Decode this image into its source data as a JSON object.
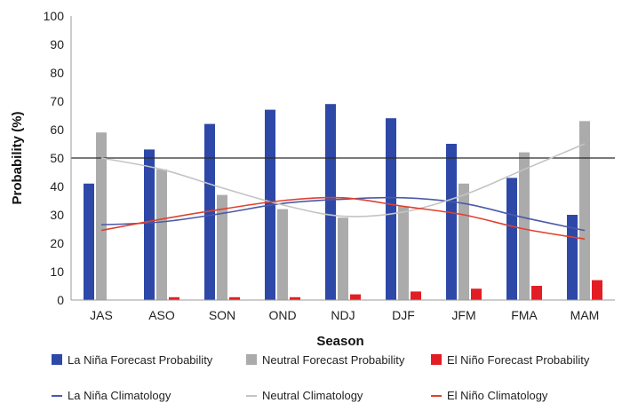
{
  "chart_data": {
    "type": "bar",
    "xlabel": "Season",
    "ylabel": "Probability (%)",
    "ylim": [
      0,
      100
    ],
    "yticks": [
      0,
      10,
      20,
      30,
      40,
      50,
      60,
      70,
      80,
      90,
      100
    ],
    "reference_line": 50,
    "grid": false,
    "legend_position": "bottom",
    "categories": [
      "JAS",
      "ASO",
      "SON",
      "OND",
      "NDJ",
      "DJF",
      "JFM",
      "FMA",
      "MAM"
    ],
    "series": [
      {
        "name": "La Niña Forecast Probability",
        "kind": "bar",
        "color": "#2e48a8",
        "values": [
          41,
          53,
          62,
          67,
          69,
          64,
          55,
          43,
          30
        ]
      },
      {
        "name": "Neutral Forecast Probability",
        "kind": "bar",
        "color": "#ababab",
        "values": [
          59,
          46,
          37,
          32,
          29,
          33,
          41,
          52,
          63
        ]
      },
      {
        "name": "El Niño Forecast Probability",
        "kind": "bar",
        "color": "#e21e24",
        "values": [
          0,
          1,
          1,
          1,
          2,
          3,
          4,
          5,
          7
        ]
      }
    ],
    "lines": [
      {
        "name": "La Niña Climatology",
        "kind": "line",
        "color": "#4a5aa8",
        "values": [
          26.5,
          27.5,
          30.5,
          34,
          35.5,
          36,
          34,
          29,
          24.5
        ]
      },
      {
        "name": "Neutral Climatology",
        "kind": "line",
        "color": "#c4c4c4",
        "values": [
          50,
          46,
          39.5,
          33.5,
          29.5,
          31,
          37,
          46,
          55
        ]
      },
      {
        "name": "El Niño Climatology",
        "kind": "line",
        "color": "#e0412e",
        "values": [
          24.5,
          28.5,
          32,
          35,
          36,
          33,
          30,
          25,
          21.5
        ]
      }
    ]
  }
}
